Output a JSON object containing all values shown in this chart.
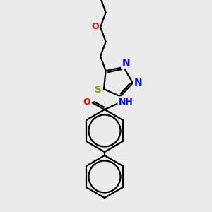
{
  "background_color": "#ebebeb",
  "bond_color": "#000000",
  "atom_colors": {
    "O": "#ff0000",
    "N": "#0000ff",
    "S": "#999900",
    "H": "#aaaaaa",
    "C": "#000000"
  },
  "figsize": [
    3.0,
    3.0
  ],
  "dpi": 100
}
